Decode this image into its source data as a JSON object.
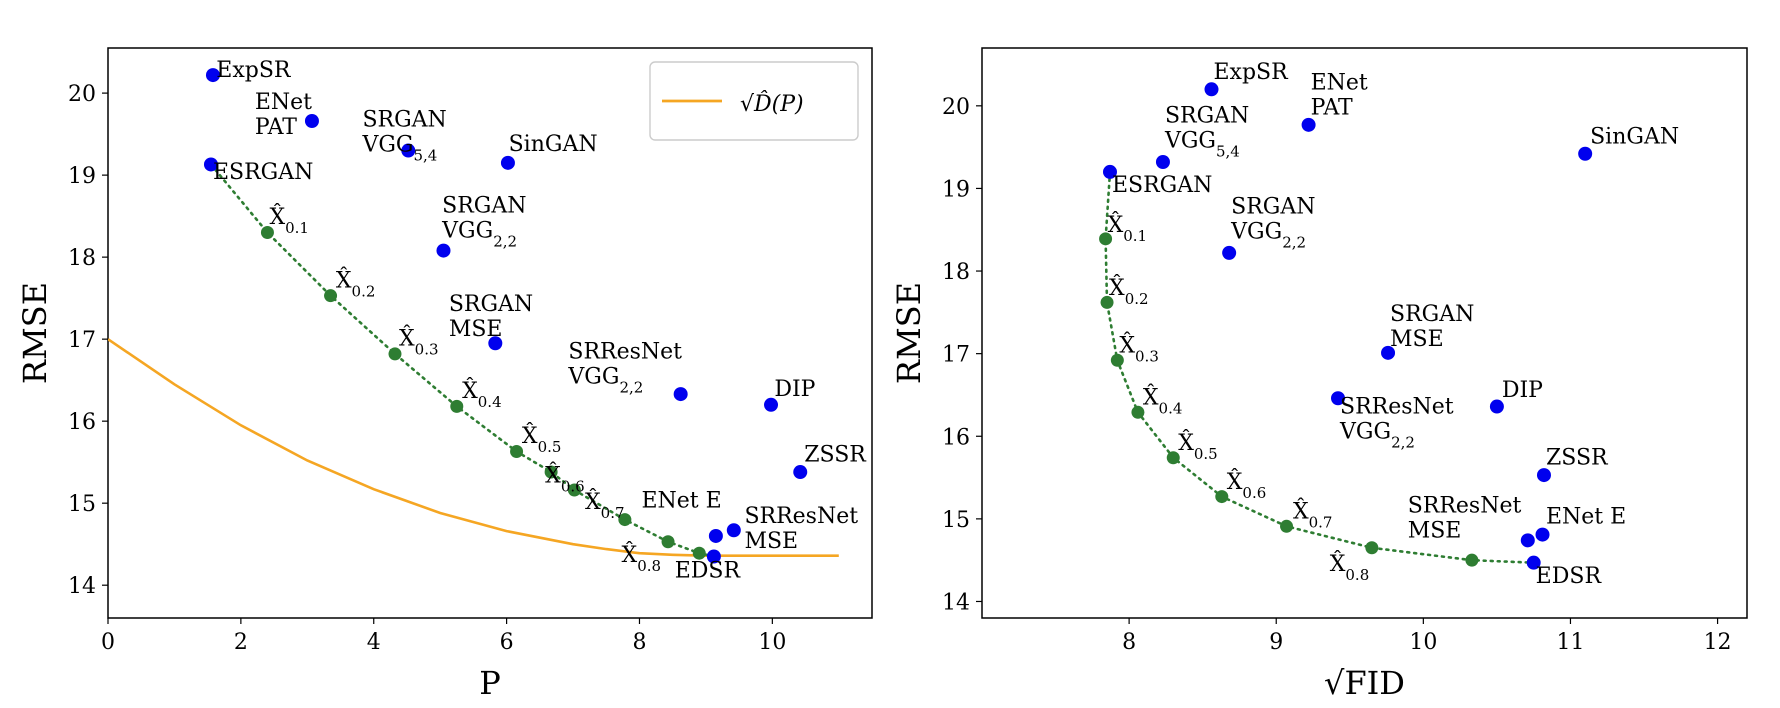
{
  "chart_data": [
    {
      "type": "scatter",
      "xlabel": "P",
      "ylabel": "RMSE",
      "xlim": [
        0,
        11.5
      ],
      "ylim": [
        13.6,
        20.55
      ],
      "xticks": [
        0,
        2,
        4,
        6,
        8,
        10
      ],
      "yticks": [
        14,
        15,
        16,
        17,
        18,
        19,
        20
      ],
      "legend": {
        "position": "top-right",
        "label": "√D̂(P)"
      },
      "curve": {
        "name": "sqrt(D(P))",
        "color": "#f5a623",
        "x": [
          0,
          1,
          2,
          3,
          4,
          5,
          6,
          7,
          7.5,
          8,
          8.5,
          9,
          9.5,
          10,
          11
        ],
        "y": [
          17.0,
          16.45,
          15.95,
          15.52,
          15.17,
          14.88,
          14.66,
          14.5,
          14.44,
          14.39,
          14.37,
          14.36,
          14.36,
          14.36,
          14.36
        ]
      },
      "methods": [
        {
          "label": [
            "ExpSR"
          ],
          "x": 1.58,
          "y": 20.22,
          "lx": 1.6,
          "ly": 20.22
        },
        {
          "label": [
            "ENet",
            "PAT"
          ],
          "x": 3.07,
          "y": 19.66,
          "lx": 2.18,
          "ly": 19.83
        },
        {
          "label": [
            "SRGAN",
            "VGG_5,4"
          ],
          "x": 4.52,
          "y": 19.3,
          "lx": 3.8,
          "ly": 19.62
        },
        {
          "label": [
            "SinGAN"
          ],
          "x": 6.02,
          "y": 19.15,
          "lx": 6.0,
          "ly": 19.32
        },
        {
          "label": [
            "ESRGAN"
          ],
          "x": 1.55,
          "y": 19.13,
          "lx": 1.55,
          "ly": 18.98
        },
        {
          "label": [
            "SRGAN",
            "VGG_2,2"
          ],
          "x": 5.05,
          "y": 18.08,
          "lx": 5.0,
          "ly": 18.57
        },
        {
          "label": [
            "SRGAN",
            "MSE"
          ],
          "x": 5.83,
          "y": 16.95,
          "lx": 5.1,
          "ly": 17.37
        },
        {
          "label": [
            "SRResNet",
            "VGG_2,2"
          ],
          "x": 8.62,
          "y": 16.33,
          "lx": 6.9,
          "ly": 16.79
        },
        {
          "label": [
            "DIP"
          ],
          "x": 9.98,
          "y": 16.2,
          "lx": 10.0,
          "ly": 16.33
        },
        {
          "label": [
            "ZSSR"
          ],
          "x": 10.42,
          "y": 15.38,
          "lx": 10.45,
          "ly": 15.53
        },
        {
          "label": [
            "ENet E"
          ],
          "x": 9.15,
          "y": 14.6,
          "lx": 8.0,
          "ly": 14.97
        },
        {
          "label": [
            "SRResNet",
            "MSE"
          ],
          "x": 9.42,
          "y": 14.67,
          "lx": 9.55,
          "ly": 14.78
        },
        {
          "label": [
            "EDSR"
          ],
          "x": 9.12,
          "y": 14.35,
          "lx": 8.5,
          "ly": 14.12
        }
      ],
      "interpolation": {
        "color": "#2e7d32",
        "points": [
          {
            "x": 1.55,
            "y": 19.13
          },
          {
            "x": 2.4,
            "y": 18.3,
            "label": "X̂",
            "sub": "0.1",
            "lx": 2.4,
            "ly": 18.45
          },
          {
            "x": 3.35,
            "y": 17.53,
            "label": "X̂",
            "sub": "0.2",
            "lx": 3.4,
            "ly": 17.68
          },
          {
            "x": 4.32,
            "y": 16.82,
            "label": "X̂",
            "sub": "0.3",
            "lx": 4.35,
            "ly": 16.97
          },
          {
            "x": 5.25,
            "y": 16.18,
            "label": "X̂",
            "sub": "0.4",
            "lx": 5.3,
            "ly": 16.33
          },
          {
            "x": 6.15,
            "y": 15.63,
            "label": "X̂",
            "sub": "0.5",
            "lx": 6.2,
            "ly": 15.78
          },
          {
            "x": 6.67,
            "y": 15.38,
            "label": "X̂",
            "sub": "0.6",
            "lx": 6.55,
            "ly": 15.3
          },
          {
            "x": 7.02,
            "y": 15.16,
            "label": "X̂",
            "sub": "0.7",
            "lx": 7.15,
            "ly": 14.98
          },
          {
            "x": 7.78,
            "y": 14.8
          },
          {
            "x": 8.43,
            "y": 14.53,
            "label": "X̂",
            "sub": "0.8",
            "lx": 7.7,
            "ly": 14.33
          },
          {
            "x": 8.9,
            "y": 14.39
          },
          {
            "x": 9.12,
            "y": 14.35
          }
        ]
      }
    },
    {
      "type": "scatter",
      "xlabel": "√FID",
      "ylabel": "RMSE",
      "xlim": [
        7.0,
        12.2
      ],
      "ylim": [
        13.8,
        20.7
      ],
      "xticks": [
        8,
        9,
        10,
        11,
        12
      ],
      "yticks": [
        14,
        15,
        16,
        17,
        18,
        19,
        20
      ],
      "methods": [
        {
          "label": [
            "ExpSR"
          ],
          "x": 8.56,
          "y": 20.2,
          "lx": 8.56,
          "ly": 20.35
        },
        {
          "label": [
            "ENet",
            "PAT"
          ],
          "x": 9.22,
          "y": 19.77,
          "lx": 9.22,
          "ly": 20.22
        },
        {
          "label": [
            "SRGAN",
            "VGG_5,4"
          ],
          "x": 8.23,
          "y": 19.32,
          "lx": 8.23,
          "ly": 19.82
        },
        {
          "label": [
            "SinGAN"
          ],
          "x": 11.1,
          "y": 19.42,
          "lx": 11.12,
          "ly": 19.57
        },
        {
          "label": [
            "ESRGAN"
          ],
          "x": 7.87,
          "y": 19.2,
          "lx": 7.87,
          "ly": 18.98
        },
        {
          "label": [
            "SRGAN",
            "VGG_2,2"
          ],
          "x": 8.68,
          "y": 18.22,
          "lx": 8.68,
          "ly": 18.72
        },
        {
          "label": [
            "SRGAN",
            "MSE"
          ],
          "x": 9.76,
          "y": 17.01,
          "lx": 9.76,
          "ly": 17.42
        },
        {
          "label": [
            "SRResNet",
            "VGG_2,2"
          ],
          "x": 9.42,
          "y": 16.46,
          "lx": 9.42,
          "ly": 16.3
        },
        {
          "label": [
            "DIP"
          ],
          "x": 10.5,
          "y": 16.36,
          "lx": 10.52,
          "ly": 16.5
        },
        {
          "label": [
            "ZSSR"
          ],
          "x": 10.82,
          "y": 15.53,
          "lx": 10.82,
          "ly": 15.68
        },
        {
          "label": [
            "ENet E"
          ],
          "x": 10.81,
          "y": 14.81,
          "lx": 10.82,
          "ly": 14.97
        },
        {
          "label": [
            "SRResNet",
            "MSE"
          ],
          "x": 10.71,
          "y": 14.74,
          "lx": 9.88,
          "ly": 15.1
        },
        {
          "label": [
            "EDSR"
          ],
          "x": 10.75,
          "y": 14.47,
          "lx": 10.75,
          "ly": 14.25
        }
      ],
      "interpolation": {
        "color": "#2e7d32",
        "points": [
          {
            "x": 7.87,
            "y": 19.2
          },
          {
            "x": 7.84,
            "y": 18.39,
            "label": "X̂",
            "sub": "0.1",
            "lx": 7.84,
            "ly": 18.52
          },
          {
            "x": 7.85,
            "y": 17.62,
            "label": "X̂",
            "sub": "0.2",
            "lx": 7.85,
            "ly": 17.76
          },
          {
            "x": 7.92,
            "y": 16.92,
            "label": "X̂",
            "sub": "0.3",
            "lx": 7.92,
            "ly": 17.06
          },
          {
            "x": 8.06,
            "y": 16.29,
            "label": "X̂",
            "sub": "0.4",
            "lx": 8.08,
            "ly": 16.43
          },
          {
            "x": 8.3,
            "y": 15.74,
            "label": "X̂",
            "sub": "0.5",
            "lx": 8.32,
            "ly": 15.88
          },
          {
            "x": 8.63,
            "y": 15.27,
            "label": "X̂",
            "sub": "0.6",
            "lx": 8.65,
            "ly": 15.41
          },
          {
            "x": 9.07,
            "y": 14.91,
            "label": "X̂",
            "sub": "0.7",
            "lx": 9.1,
            "ly": 15.05
          },
          {
            "x": 9.65,
            "y": 14.65,
            "label": "X̂",
            "sub": "0.8",
            "lx": 9.35,
            "ly": 14.42
          },
          {
            "x": 10.33,
            "y": 14.5
          },
          {
            "x": 10.75,
            "y": 14.47
          }
        ]
      }
    }
  ]
}
